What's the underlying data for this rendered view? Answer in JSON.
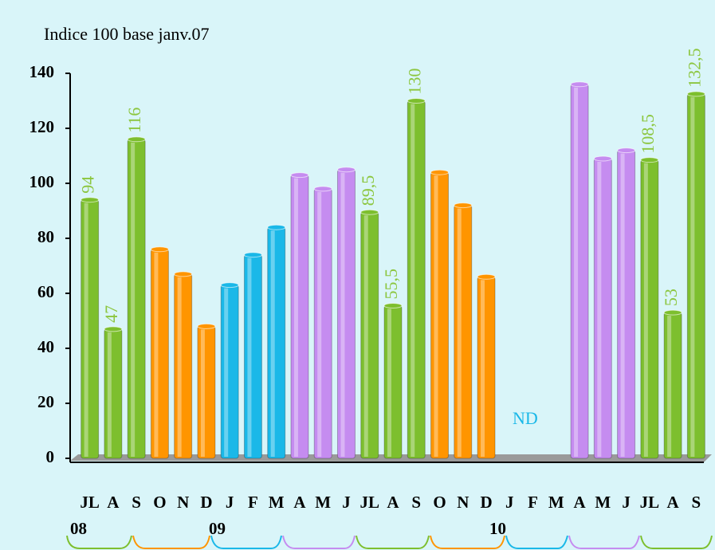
{
  "chart_data": {
    "type": "bar",
    "title": "Indice 100 base janv.07",
    "categories": [
      "JL",
      "A",
      "S",
      "O",
      "N",
      "D",
      "J",
      "F",
      "M",
      "A",
      "M",
      "J",
      "JL",
      "A",
      "S",
      "O",
      "N",
      "D",
      "J",
      "F",
      "M",
      "A",
      "M",
      "J",
      "JL",
      "A",
      "S"
    ],
    "values": [
      94,
      47,
      116,
      76,
      67,
      48,
      63,
      74,
      84,
      103,
      98,
      105,
      89.5,
      55.5,
      130,
      104,
      92,
      66,
      null,
      null,
      null,
      136,
      109,
      112,
      108.5,
      53,
      132.5
    ],
    "value_labels": [
      "94",
      "47",
      "116",
      null,
      null,
      null,
      null,
      null,
      null,
      null,
      null,
      null,
      "89,5",
      "55,5",
      "130",
      null,
      null,
      null,
      null,
      null,
      null,
      null,
      null,
      null,
      "108,5",
      "53",
      "132,5"
    ],
    "colors": [
      "#7dbf2e",
      "#7dbf2e",
      "#7dbf2e",
      "#ff9500",
      "#ff9500",
      "#ff9500",
      "#1ab8e8",
      "#1ab8e8",
      "#1ab8e8",
      "#c58cf0",
      "#c58cf0",
      "#c58cf0",
      "#7dbf2e",
      "#7dbf2e",
      "#7dbf2e",
      "#ff9500",
      "#ff9500",
      "#ff9500",
      "#1ab8e8",
      "#1ab8e8",
      "#1ab8e8",
      "#c58cf0",
      "#c58cf0",
      "#c58cf0",
      "#7dbf2e",
      "#7dbf2e",
      "#7dbf2e"
    ],
    "years": [
      "08",
      "09",
      "10"
    ],
    "annotation": "ND",
    "ylim": [
      0,
      140
    ],
    "yticks": [
      0,
      20,
      40,
      60,
      80,
      100,
      120,
      140
    ]
  }
}
